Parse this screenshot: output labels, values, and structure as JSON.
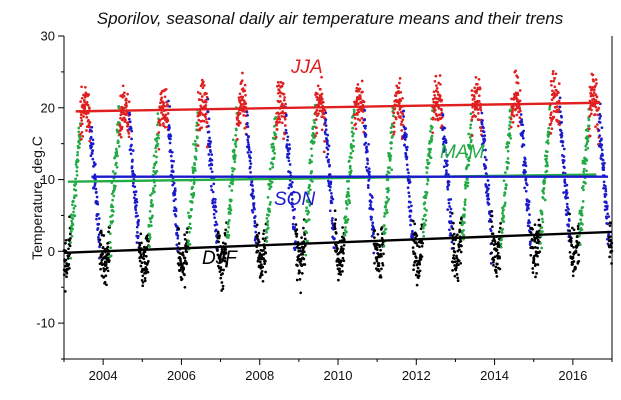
{
  "chart_data": {
    "type": "scatter",
    "title": "Sporilov, seasonal daily air temperature means and their trens",
    "xlabel": "",
    "ylabel": "Temperature, deg.C",
    "xlim": [
      2003.0,
      2017.0
    ],
    "ylim": [
      -15,
      30
    ],
    "xticks": [
      2004,
      2006,
      2008,
      2010,
      2012,
      2014,
      2016
    ],
    "yticks": [
      -10,
      0,
      10,
      20,
      30
    ],
    "grid": false,
    "series": [
      {
        "name": "JJA",
        "color": "#e02020",
        "months": [
          6,
          7,
          8
        ],
        "mean_range": [
          15.5,
          25.0
        ],
        "trend": {
          "x": [
            2003.3,
            2016.7
          ],
          "y": [
            19.5,
            20.7
          ]
        }
      },
      {
        "name": "MAM",
        "color": "#22aa44",
        "months": [
          3,
          4,
          5
        ],
        "mean_range": [
          -2.0,
          22.0
        ],
        "trend": {
          "x": [
            2003.1,
            2016.6
          ],
          "y": [
            9.7,
            10.7
          ]
        }
      },
      {
        "name": "SON",
        "color": "#1a1acc",
        "months": [
          9,
          10,
          11
        ],
        "mean_range": [
          -2.0,
          22.0
        ],
        "trend": {
          "x": [
            2003.7,
            2016.9
          ],
          "y": [
            10.4,
            10.4
          ]
        }
      },
      {
        "name": "DJF",
        "color": "#000000",
        "months": [
          12,
          1,
          2
        ],
        "mean_range": [
          -10.0,
          5.0
        ],
        "trend": {
          "x": [
            2003.0,
            2017.0
          ],
          "y": [
            -0.2,
            2.7
          ]
        }
      }
    ]
  }
}
